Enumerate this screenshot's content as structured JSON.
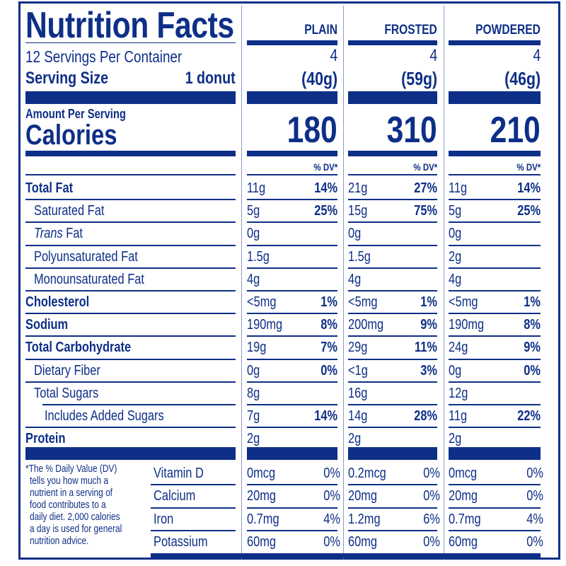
{
  "label": {
    "title": "Nutrition Facts",
    "servings_per_container": "12 Servings Per Container",
    "serving_size_label": "Serving Size",
    "serving_size_value": "1 donut",
    "amount_per_serving": "Amount Per Serving",
    "calories_label": "Calories",
    "dv_header": "% DV*",
    "accent_color": "#0e2f87"
  },
  "columns": [
    {
      "name": "PLAIN",
      "servings": "4",
      "serving_weight": "(40g)",
      "calories": "180"
    },
    {
      "name": "FROSTED",
      "servings": "4",
      "serving_weight": "(59g)",
      "calories": "310"
    },
    {
      "name": "POWDERED",
      "servings": "4",
      "serving_weight": "(46g)",
      "calories": "210"
    }
  ],
  "nutrients": [
    {
      "label": "Total Fat",
      "bold": true,
      "values": [
        {
          "amt": "11g",
          "dv": "14%"
        },
        {
          "amt": "21g",
          "dv": "27%"
        },
        {
          "amt": "11g",
          "dv": "14%"
        }
      ]
    },
    {
      "label": "Saturated Fat",
      "bold": false,
      "values": [
        {
          "amt": "5g",
          "dv": "25%"
        },
        {
          "amt": "15g",
          "dv": "75%"
        },
        {
          "amt": "5g",
          "dv": "25%"
        }
      ]
    },
    {
      "label_italic": "Trans",
      "label": " Fat",
      "bold": false,
      "values": [
        {
          "amt": "0g",
          "dv": ""
        },
        {
          "amt": "0g",
          "dv": ""
        },
        {
          "amt": "0g",
          "dv": ""
        }
      ]
    },
    {
      "label": "Polyunsaturated Fat",
      "bold": false,
      "values": [
        {
          "amt": "1.5g",
          "dv": ""
        },
        {
          "amt": "1.5g",
          "dv": ""
        },
        {
          "amt": "2g",
          "dv": ""
        }
      ]
    },
    {
      "label": "Monounsaturated Fat",
      "bold": false,
      "values": [
        {
          "amt": "4g",
          "dv": ""
        },
        {
          "amt": "4g",
          "dv": ""
        },
        {
          "amt": "4g",
          "dv": ""
        }
      ]
    },
    {
      "label": "Cholesterol",
      "bold": true,
      "values": [
        {
          "amt": "<5mg",
          "dv": "1%"
        },
        {
          "amt": "<5mg",
          "dv": "1%"
        },
        {
          "amt": "<5mg",
          "dv": "1%"
        }
      ]
    },
    {
      "label": "Sodium",
      "bold": true,
      "values": [
        {
          "amt": "190mg",
          "dv": "8%"
        },
        {
          "amt": "200mg",
          "dv": "9%"
        },
        {
          "amt": "190mg",
          "dv": "8%"
        }
      ]
    },
    {
      "label": "Total Carbohydrate",
      "bold": true,
      "values": [
        {
          "amt": "19g",
          "dv": "7%"
        },
        {
          "amt": "29g",
          "dv": "11%"
        },
        {
          "amt": "24g",
          "dv": "9%"
        }
      ]
    },
    {
      "label": "Dietary Fiber",
      "bold": false,
      "values": [
        {
          "amt": "0g",
          "dv": "0%"
        },
        {
          "amt": "<1g",
          "dv": "3%"
        },
        {
          "amt": "0g",
          "dv": "0%"
        }
      ]
    },
    {
      "label": "Total Sugars",
      "bold": false,
      "values": [
        {
          "amt": "8g",
          "dv": ""
        },
        {
          "amt": "16g",
          "dv": ""
        },
        {
          "amt": "12g",
          "dv": ""
        }
      ]
    },
    {
      "label": "Includes Added Sugars",
      "bold": false,
      "values": [
        {
          "amt": "7g",
          "dv": "14%"
        },
        {
          "amt": "14g",
          "dv": "28%"
        },
        {
          "amt": "11g",
          "dv": "22%"
        }
      ]
    },
    {
      "label": "Protein",
      "bold": true,
      "values": [
        {
          "amt": "2g",
          "dv": ""
        },
        {
          "amt": "2g",
          "dv": ""
        },
        {
          "amt": "2g",
          "dv": ""
        }
      ]
    }
  ],
  "vitamins": [
    {
      "label": "Vitamin D",
      "values": [
        {
          "amt": "0mcg",
          "dv": "0%"
        },
        {
          "amt": "0.2mcg",
          "dv": "0%"
        },
        {
          "amt": "0mcg",
          "dv": "0%"
        }
      ]
    },
    {
      "label": "Calcium",
      "values": [
        {
          "amt": "20mg",
          "dv": "0%"
        },
        {
          "amt": "20mg",
          "dv": "0%"
        },
        {
          "amt": "20mg",
          "dv": "0%"
        }
      ]
    },
    {
      "label": "Iron",
      "values": [
        {
          "amt": "0.7mg",
          "dv": "4%"
        },
        {
          "amt": "1.2mg",
          "dv": "6%"
        },
        {
          "amt": "0.7mg",
          "dv": "4%"
        }
      ]
    },
    {
      "label": "Potassium",
      "values": [
        {
          "amt": "60mg",
          "dv": "0%"
        },
        {
          "amt": "60mg",
          "dv": "0%"
        },
        {
          "amt": "60mg",
          "dv": "0%"
        }
      ]
    }
  ],
  "footnote": {
    "lines": [
      "*The % Daily Value (DV)",
      "tells you how much a",
      "nutrient in a serving of",
      "food contributes to a",
      "daily diet. 2,000 calories",
      "a day is used for general",
      "nutrition advice."
    ]
  }
}
